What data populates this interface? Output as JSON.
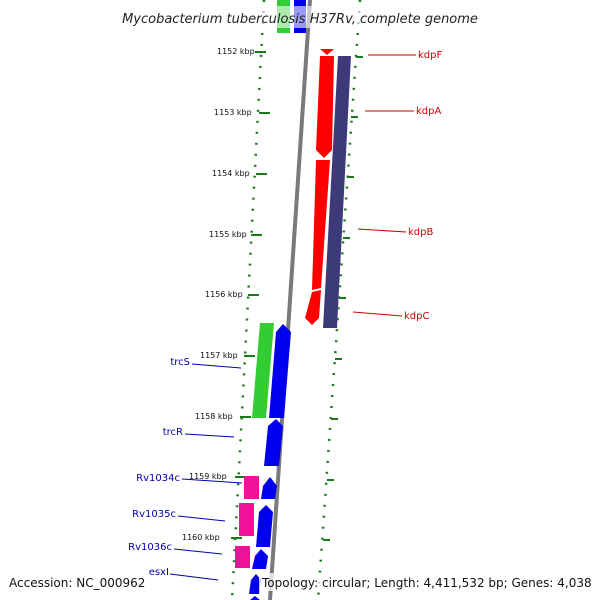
{
  "title": "Mycobacterium tuberculosis H37Rv, complete genome",
  "ruler": {
    "ticks": [
      "1152 kbp",
      "1153 kbp",
      "1154 kbp",
      "1155 kbp",
      "1156 kbp",
      "1157 kbp",
      "1158 kbp",
      "1159 kbp",
      "1160 kbp"
    ]
  },
  "labels": {
    "right": [
      {
        "name": "kdpF",
        "color": "#cc0000"
      },
      {
        "name": "kdpA",
        "color": "#cc0000"
      },
      {
        "name": "kdpB",
        "color": "#cc0000"
      },
      {
        "name": "kdpC",
        "color": "#cc0000"
      }
    ],
    "left": [
      {
        "name": "trcS",
        "color": "#0000aa"
      },
      {
        "name": "trcR",
        "color": "#0000aa"
      },
      {
        "name": "Rv1034c",
        "color": "#0000aa"
      },
      {
        "name": "Rv1035c",
        "color": "#0000aa"
      },
      {
        "name": "Rv1036c",
        "color": "#0000aa"
      },
      {
        "name": "esxI",
        "color": "#0000aa"
      }
    ]
  },
  "footer": {
    "accession": "Accession: NC_000962",
    "summary": "Topology: circular; Length: 4,411,532 bp; Genes: 4,038"
  },
  "colors": {
    "background": "#ffffff",
    "gc_dots": "#1a7a1a",
    "backbone": "#7a7a7a",
    "red_genes": "#ff0000",
    "navy_genes": "#3d3a7a",
    "green_genes": "#33cc33",
    "blue_genes": "#0000ee",
    "pink_genes": "#ee1199",
    "label_red": "#cc0000",
    "label_blue": "#0000aa"
  }
}
